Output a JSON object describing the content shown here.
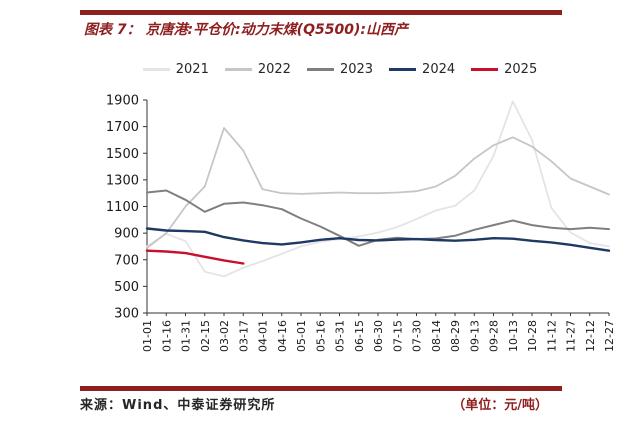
{
  "page": {
    "title": "图表 7：  京唐港:平仓价:动力末煤(Q5500):山西产"
  },
  "footer": {
    "source_label": "来源：",
    "source": "Wind、中泰证券研究所",
    "unit": "（单位：元/吨）"
  },
  "colors": {
    "brand_maroon": "#8e2020",
    "axis": "#333333",
    "tick_text": "#1a1a1a"
  },
  "chart_data": {
    "type": "line",
    "title": "京唐港:平仓价:动力末煤(Q5500):山西产",
    "xlabel": "",
    "ylabel": "",
    "unit": "元/吨",
    "ylim": [
      300,
      1900
    ],
    "yticks": [
      300,
      500,
      700,
      900,
      1100,
      1300,
      1500,
      1700,
      1900
    ],
    "grid": false,
    "legend_position": "top",
    "categories": [
      "01-01",
      "01-16",
      "01-31",
      "02-15",
      "03-02",
      "03-17",
      "04-01",
      "04-16",
      "05-01",
      "05-16",
      "05-31",
      "06-15",
      "06-30",
      "07-15",
      "07-30",
      "08-14",
      "08-29",
      "09-13",
      "09-28",
      "10-13",
      "10-28",
      "11-12",
      "11-27",
      "12-12",
      "12-27"
    ],
    "series": [
      {
        "name": "2021",
        "color": "#e4e4e4",
        "width": 1.8,
        "values": [
          800,
          895,
          840,
          610,
          575,
          640,
          690,
          745,
          800,
          835,
          855,
          875,
          905,
          945,
          1005,
          1070,
          1105,
          1220,
          1480,
          1890,
          1600,
          1090,
          905,
          825,
          800
        ]
      },
      {
        "name": "2022",
        "color": "#c6c6c6",
        "width": 1.8,
        "values": [
          790,
          900,
          1100,
          1250,
          1690,
          1520,
          1230,
          1200,
          1195,
          1200,
          1205,
          1200,
          1200,
          1205,
          1215,
          1250,
          1330,
          1460,
          1560,
          1620,
          1550,
          1440,
          1310,
          1250,
          1190
        ]
      },
      {
        "name": "2023",
        "color": "#7f7f7f",
        "width": 2,
        "values": [
          1205,
          1220,
          1150,
          1060,
          1120,
          1130,
          1110,
          1080,
          1010,
          950,
          880,
          805,
          850,
          865,
          855,
          860,
          880,
          925,
          960,
          995,
          960,
          940,
          930,
          940,
          930
        ]
      },
      {
        "name": "2024",
        "color": "#1f3864",
        "width": 2.4,
        "values": [
          935,
          920,
          915,
          910,
          870,
          845,
          825,
          815,
          830,
          850,
          862,
          848,
          845,
          852,
          855,
          848,
          843,
          850,
          862,
          858,
          842,
          830,
          812,
          790,
          768
        ]
      },
      {
        "name": "2025",
        "color": "#c8102e",
        "width": 2.4,
        "values": [
          768,
          762,
          750,
          722,
          695,
          672,
          null,
          null,
          null,
          null,
          null,
          null,
          null,
          null,
          null,
          null,
          null,
          null,
          null,
          null,
          null,
          null,
          null,
          null,
          null
        ]
      }
    ]
  }
}
